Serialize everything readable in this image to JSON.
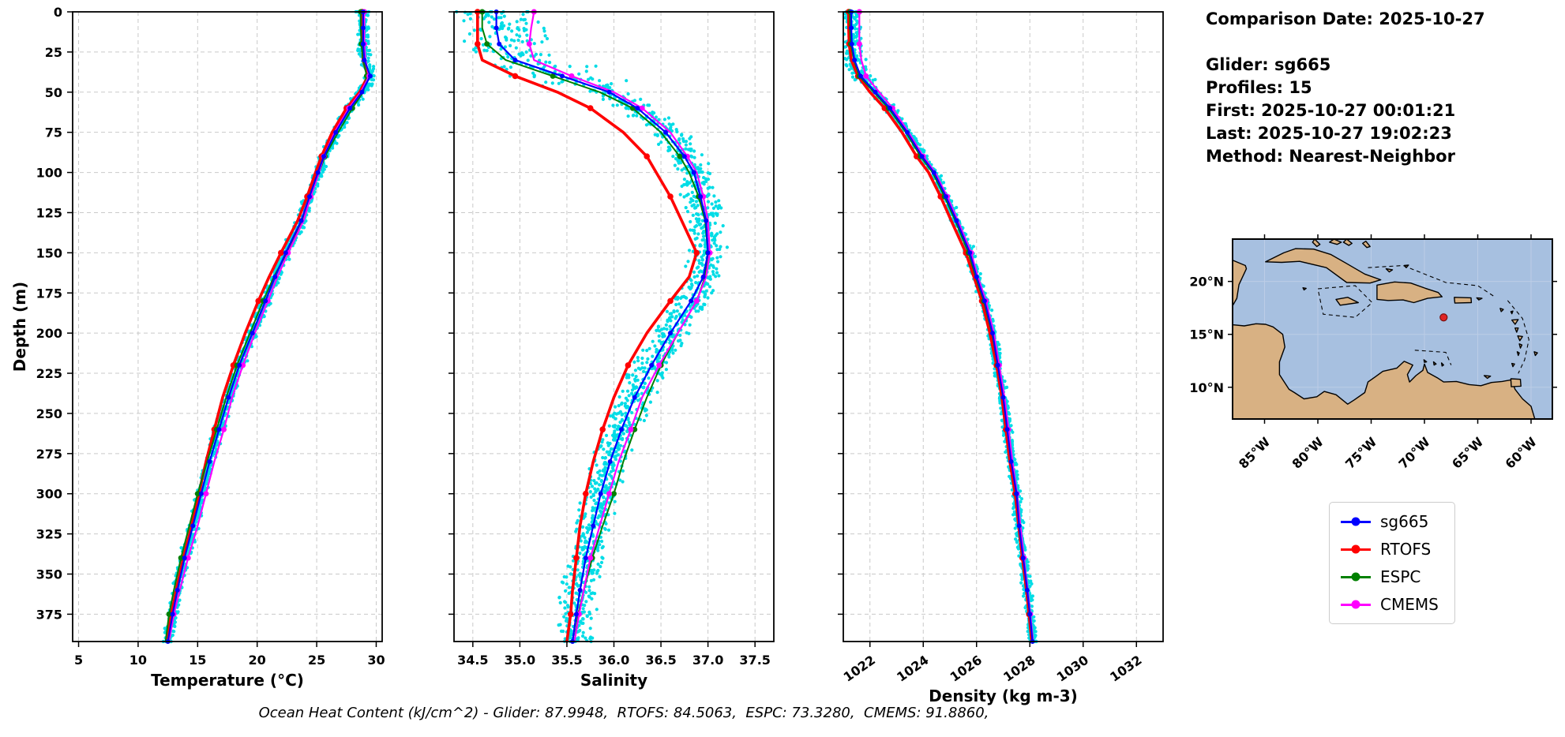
{
  "info_panel": {
    "title": "Comparison Date: 2025-10-27",
    "lines": [
      "Glider: sg665",
      "Profiles: 15",
      "First: 2025-10-27 00:01:21",
      "Last: 2025-10-27 19:02:23",
      "Method: Nearest-Neighbor"
    ]
  },
  "legend": {
    "items": [
      {
        "label": "sg665",
        "color": "#0000ff"
      },
      {
        "label": "RTOFS",
        "color": "#ff0000"
      },
      {
        "label": "ESPC",
        "color": "#008000"
      },
      {
        "label": "CMEMS",
        "color": "#ff00ff"
      }
    ]
  },
  "footer": {
    "text": "Ocean Heat Content (kJ/cm^2) - Glider: 87.9948,  RTOFS: 84.5063,  ESPC: 73.3280,  CMEMS: 91.8860,"
  },
  "map": {
    "extent_lon": [
      -88,
      -58
    ],
    "extent_lat": [
      7,
      24
    ],
    "lat_ticks": [
      10,
      15,
      20
    ],
    "lat_labels": [
      "10°N",
      "15°N",
      "20°N"
    ],
    "lon_ticks": [
      -85,
      -80,
      -75,
      -70,
      -65,
      -60
    ],
    "lon_labels": [
      "85°W",
      "80°W",
      "75°W",
      "70°W",
      "65°W",
      "60°W"
    ],
    "marker": {
      "lon": -68.2,
      "lat": 16.6,
      "color": "#e02424"
    },
    "ocean_color": "#a7c0e0",
    "land_color": "#d8b183"
  },
  "chart_data": {
    "type": "line",
    "title": "",
    "ylabel": "Depth (m)",
    "ylim": [
      0,
      392
    ],
    "yticks": [
      0,
      25,
      50,
      75,
      100,
      125,
      150,
      175,
      200,
      225,
      250,
      275,
      300,
      325,
      350,
      375
    ],
    "depths_m": [
      0,
      10,
      20,
      30,
      40,
      50,
      60,
      75,
      90,
      100,
      115,
      130,
      150,
      165,
      180,
      200,
      220,
      240,
      260,
      280,
      300,
      320,
      340,
      360,
      375,
      392
    ],
    "charts": [
      {
        "xlabel": "Temperature (°C)",
        "xlim": [
          4.5,
          30.5
        ],
        "xticks": [
          5,
          10,
          15,
          20,
          25,
          30
        ],
        "xtick_labels": [
          "5",
          "10",
          "15",
          "20",
          "25",
          "30"
        ],
        "xtick_rotation": 0,
        "show_ytick_labels": true,
        "show_ylabel": true,
        "scatter": {
          "name": "glider-raw-points",
          "color": "#00dce6",
          "jitter": 0.3,
          "surface_boost": 1.2,
          "radius": 2.1,
          "profiles": 15
        },
        "series": [
          {
            "name": "sg665",
            "color": "#0000ff",
            "line_width": 2.2,
            "marker_radius": 3.0,
            "marker_every": 1,
            "values": [
              28.9,
              28.9,
              28.9,
              29.0,
              29.5,
              28.8,
              27.8,
              26.6,
              25.6,
              25.1,
              24.4,
              23.7,
              22.4,
              21.5,
              20.7,
              19.6,
              18.5,
              17.6,
              16.8,
              16.0,
              15.3,
              14.6,
              13.9,
              13.3,
              12.9,
              12.5
            ]
          },
          {
            "name": "RTOFS",
            "color": "#ff0000",
            "line_width": 3.6,
            "marker_radius": 3.8,
            "marker_every": 2,
            "values": [
              28.8,
              28.8,
              28.85,
              28.9,
              29.3,
              28.6,
              27.5,
              26.3,
              25.4,
              24.9,
              24.2,
              23.4,
              22.0,
              21.0,
              20.1,
              19.0,
              18.0,
              17.1,
              16.4,
              15.7,
              15.1,
              14.5,
              13.8,
              13.2,
              12.8,
              12.4
            ]
          },
          {
            "name": "ESPC",
            "color": "#008000",
            "line_width": 2.0,
            "marker_radius": 3.5,
            "marker_every": 2,
            "values": [
              28.7,
              28.7,
              28.75,
              28.9,
              29.2,
              28.9,
              28.0,
              26.8,
              25.7,
              25.2,
              24.5,
              23.8,
              22.5,
              21.4,
              20.5,
              19.4,
              18.3,
              17.4,
              16.6,
              15.8,
              15.0,
              14.3,
              13.6,
              13.0,
              12.6,
              12.3
            ]
          },
          {
            "name": "CMEMS",
            "color": "#ff00ff",
            "line_width": 2.2,
            "marker_radius": 3.5,
            "marker_every": 2,
            "values": [
              29.0,
              29.0,
              29.0,
              29.1,
              29.4,
              28.7,
              27.7,
              26.5,
              25.6,
              25.2,
              24.5,
              23.9,
              22.6,
              21.7,
              20.9,
              19.8,
              18.8,
              17.9,
              17.2,
              16.4,
              15.7,
              15.0,
              14.2,
              13.5,
              13.0,
              12.6
            ]
          }
        ]
      },
      {
        "xlabel": "Salinity",
        "xlim": [
          34.3,
          37.7
        ],
        "xticks": [
          34.5,
          35.0,
          35.5,
          36.0,
          36.5,
          37.0,
          37.5
        ],
        "xtick_labels": [
          "34.5",
          "35.0",
          "35.5",
          "36.0",
          "36.5",
          "37.0",
          "37.5"
        ],
        "xtick_rotation": 0,
        "show_ytick_labels": false,
        "show_ylabel": false,
        "scatter": {
          "name": "glider-raw-points",
          "color": "#00dce6",
          "jitter": 0.13,
          "surface_boost": 2.6,
          "radius": 2.1,
          "profiles": 15
        },
        "series": [
          {
            "name": "sg665",
            "color": "#0000ff",
            "line_width": 2.2,
            "marker_radius": 3.0,
            "marker_every": 1,
            "values": [
              34.75,
              34.75,
              34.78,
              34.95,
              35.45,
              35.95,
              36.25,
              36.55,
              36.75,
              36.85,
              36.92,
              36.98,
              37.0,
              36.95,
              36.82,
              36.6,
              36.4,
              36.22,
              36.08,
              35.96,
              35.86,
              35.78,
              35.7,
              35.64,
              35.6,
              35.56
            ]
          },
          {
            "name": "RTOFS",
            "color": "#ff0000",
            "line_width": 3.6,
            "marker_radius": 3.8,
            "marker_every": 2,
            "values": [
              34.55,
              34.55,
              34.55,
              34.6,
              34.95,
              35.4,
              35.75,
              36.1,
              36.35,
              36.45,
              36.6,
              36.72,
              36.88,
              36.8,
              36.6,
              36.35,
              36.15,
              36.0,
              35.88,
              35.78,
              35.7,
              35.64,
              35.6,
              35.56,
              35.54,
              35.5
            ]
          },
          {
            "name": "ESPC",
            "color": "#008000",
            "line_width": 2.0,
            "marker_radius": 3.5,
            "marker_every": 2,
            "values": [
              34.6,
              34.6,
              34.65,
              34.85,
              35.35,
              35.85,
              36.2,
              36.5,
              36.7,
              36.8,
              36.9,
              36.97,
              37.0,
              36.97,
              36.88,
              36.68,
              36.5,
              36.35,
              36.22,
              36.1,
              36.0,
              35.88,
              35.77,
              35.68,
              35.62,
              35.58
            ]
          },
          {
            "name": "CMEMS",
            "color": "#ff00ff",
            "line_width": 2.2,
            "marker_radius": 3.5,
            "marker_every": 2,
            "values": [
              35.15,
              35.12,
              35.1,
              35.15,
              35.55,
              36.0,
              36.3,
              36.6,
              36.78,
              36.88,
              36.95,
              37.0,
              37.02,
              36.98,
              36.88,
              36.68,
              36.48,
              36.3,
              36.18,
              36.05,
              35.95,
              35.85,
              35.75,
              35.68,
              35.63,
              35.58
            ]
          }
        ]
      },
      {
        "xlabel": "Density (kg m-3)",
        "xlim": [
          1021,
          1033
        ],
        "xticks": [
          1022,
          1024,
          1026,
          1028,
          1030,
          1032
        ],
        "xtick_labels": [
          "1022",
          "1024",
          "1026",
          "1028",
          "1030",
          "1032"
        ],
        "xtick_rotation": -35,
        "show_ytick_labels": false,
        "show_ylabel": false,
        "scatter": {
          "name": "glider-raw-points",
          "color": "#00dce6",
          "jitter": 0.12,
          "surface_boost": 2.0,
          "radius": 2.1,
          "profiles": 15
        },
        "series": [
          {
            "name": "sg665",
            "color": "#0000ff",
            "line_width": 2.2,
            "marker_radius": 3.0,
            "marker_every": 1,
            "values": [
              1021.3,
              1021.3,
              1021.32,
              1021.42,
              1021.65,
              1022.2,
              1022.75,
              1023.4,
              1023.95,
              1024.4,
              1024.85,
              1025.25,
              1025.75,
              1026.0,
              1026.3,
              1026.6,
              1026.8,
              1027.0,
              1027.15,
              1027.3,
              1027.5,
              1027.6,
              1027.75,
              1027.9,
              1028.0,
              1028.1
            ]
          },
          {
            "name": "RTOFS",
            "color": "#ff0000",
            "line_width": 3.6,
            "marker_radius": 3.8,
            "marker_every": 2,
            "values": [
              1021.2,
              1021.2,
              1021.22,
              1021.3,
              1021.55,
              1022.0,
              1022.55,
              1023.2,
              1023.75,
              1024.2,
              1024.65,
              1025.05,
              1025.6,
              1025.9,
              1026.2,
              1026.5,
              1026.75,
              1026.95,
              1027.1,
              1027.25,
              1027.45,
              1027.58,
              1027.72,
              1027.87,
              1027.97,
              1028.07
            ]
          },
          {
            "name": "ESPC",
            "color": "#008000",
            "line_width": 2.0,
            "marker_radius": 3.5,
            "marker_every": 2,
            "values": [
              1021.25,
              1021.25,
              1021.28,
              1021.4,
              1021.6,
              1022.15,
              1022.7,
              1023.35,
              1023.9,
              1024.35,
              1024.8,
              1025.2,
              1025.7,
              1025.97,
              1026.27,
              1026.58,
              1026.8,
              1027.0,
              1027.17,
              1027.33,
              1027.5,
              1027.63,
              1027.77,
              1027.9,
              1028.0,
              1028.1
            ]
          },
          {
            "name": "CMEMS",
            "color": "#ff00ff",
            "line_width": 2.2,
            "marker_radius": 3.5,
            "marker_every": 2,
            "values": [
              1021.6,
              1021.6,
              1021.6,
              1021.68,
              1021.85,
              1022.35,
              1022.85,
              1023.45,
              1024.0,
              1024.45,
              1024.9,
              1025.3,
              1025.8,
              1026.05,
              1026.35,
              1026.65,
              1026.85,
              1027.05,
              1027.2,
              1027.35,
              1027.52,
              1027.65,
              1027.78,
              1027.92,
              1028.02,
              1028.12
            ]
          }
        ]
      }
    ]
  }
}
